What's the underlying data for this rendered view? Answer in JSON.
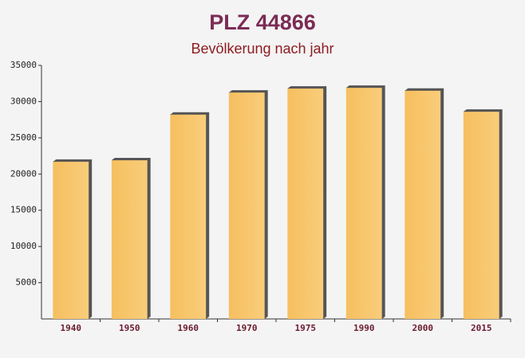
{
  "chart_data": {
    "type": "bar",
    "title": "PLZ 44866",
    "subtitle": "Bevölkerung nach jahr",
    "categories": [
      "1940",
      "1950",
      "1960",
      "1970",
      "1975",
      "1990",
      "2000",
      "2015"
    ],
    "values": [
      21700,
      21900,
      28200,
      31250,
      31800,
      31900,
      31500,
      28600
    ],
    "color": "#f6bf5f",
    "ylim": [
      0,
      35000
    ],
    "yticks": [
      5000,
      10000,
      15000,
      20000,
      25000,
      30000,
      35000
    ],
    "grid": false
  }
}
